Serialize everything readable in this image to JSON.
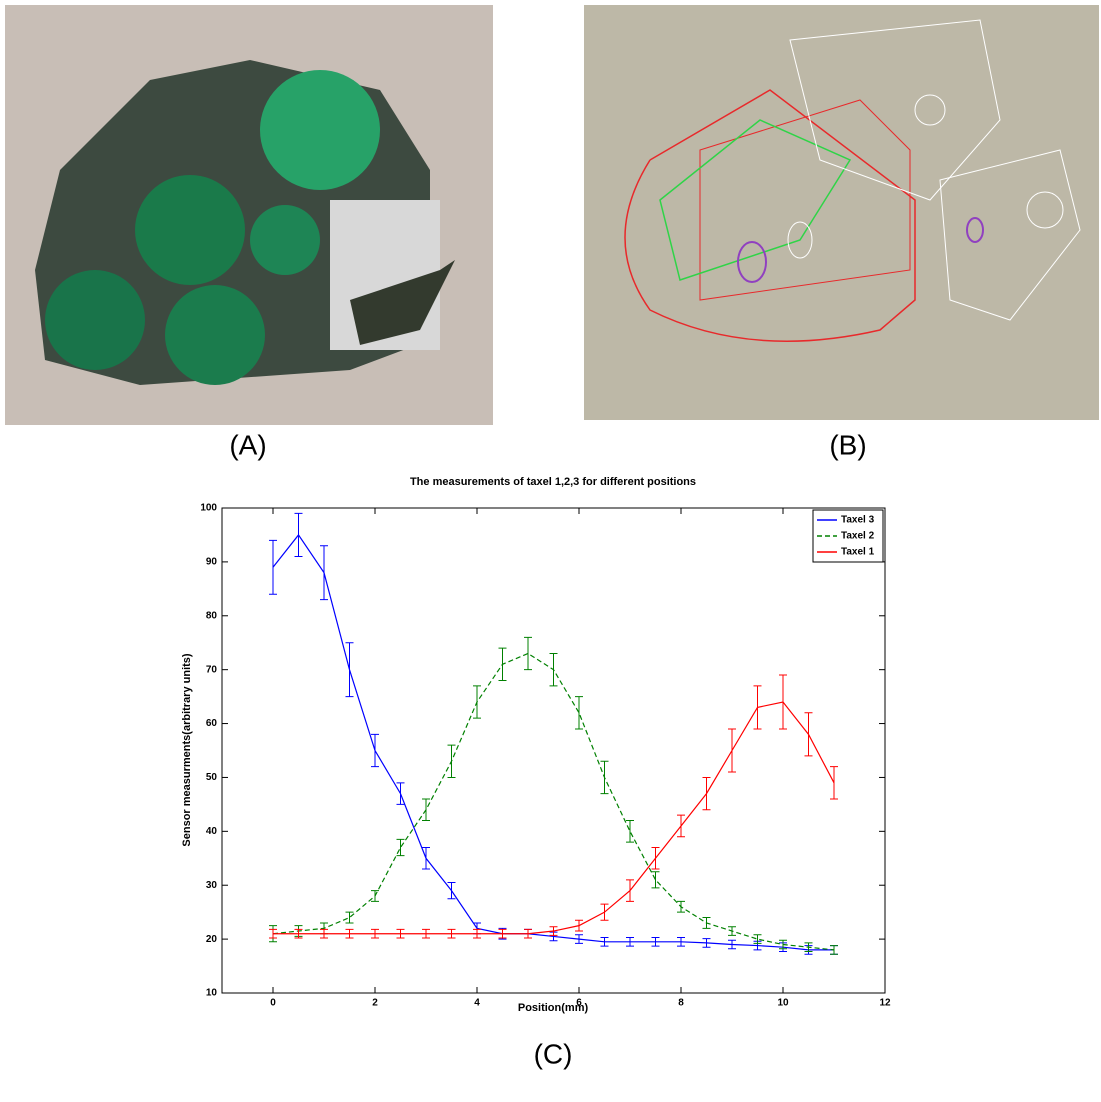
{
  "figure": {
    "labels": [
      "(A)",
      "(B)",
      "(C)"
    ]
  },
  "chart_data": {
    "type": "line",
    "title": "The measurements of taxel 1,2,3 for different positions",
    "x_label": "Position(mm)",
    "y_label": "Sensor measurments(arbitrary units)",
    "x": [
      0,
      0.5,
      1,
      1.5,
      2,
      2.5,
      3,
      3.5,
      4,
      4.5,
      5,
      5.5,
      6,
      6.5,
      7,
      7.5,
      8,
      8.5,
      9,
      9.5,
      10,
      10.5,
      11
    ],
    "series": [
      {
        "name": "Taxel 3",
        "color": "#0000ff",
        "dash": false,
        "values": [
          89,
          95,
          88,
          70,
          55,
          47,
          35,
          29,
          22,
          21,
          21,
          20.5,
          20,
          19.5,
          19.5,
          19.5,
          19.5,
          19.3,
          19,
          18.8,
          18.5,
          18,
          18
        ],
        "errors": [
          5,
          4,
          5,
          5,
          3,
          2,
          2,
          1.5,
          1,
          1,
          0.8,
          0.8,
          0.8,
          0.8,
          0.8,
          0.8,
          0.8,
          0.8,
          0.8,
          0.8,
          0.8,
          0.8,
          0.8
        ]
      },
      {
        "name": "Taxel 2",
        "color": "#008000",
        "dash": true,
        "values": [
          21,
          21.5,
          22,
          24,
          28,
          37,
          44,
          53,
          64,
          71,
          73,
          70,
          62,
          50,
          40,
          31,
          26,
          23,
          21.5,
          20,
          19,
          18.5,
          18
        ],
        "errors": [
          1.5,
          1,
          1,
          1,
          1,
          1.5,
          2,
          3,
          3,
          3,
          3,
          3,
          3,
          3,
          2,
          1.5,
          1,
          1,
          0.8,
          0.8,
          0.8,
          0.8,
          0.8
        ]
      },
      {
        "name": "Taxel 1",
        "color": "#ff0000",
        "dash": false,
        "values": [
          21,
          21,
          21,
          21,
          21,
          21,
          21,
          21,
          21,
          21,
          21,
          21.5,
          22.5,
          25,
          29,
          35,
          41,
          47,
          55,
          63,
          64,
          58,
          49
        ],
        "errors": [
          0.8,
          0.8,
          0.8,
          0.8,
          0.8,
          0.8,
          0.8,
          0.8,
          0.8,
          0.8,
          0.8,
          0.8,
          1,
          1.5,
          2,
          2,
          2,
          3,
          4,
          4,
          5,
          4,
          3
        ]
      }
    ],
    "xlim": [
      -1,
      12
    ],
    "ylim": [
      10,
      100
    ],
    "xticks": [
      0,
      2,
      4,
      6,
      8,
      10,
      12
    ],
    "yticks": [
      10,
      20,
      30,
      40,
      50,
      60,
      70,
      80,
      90,
      100
    ],
    "legend": "upper right"
  }
}
